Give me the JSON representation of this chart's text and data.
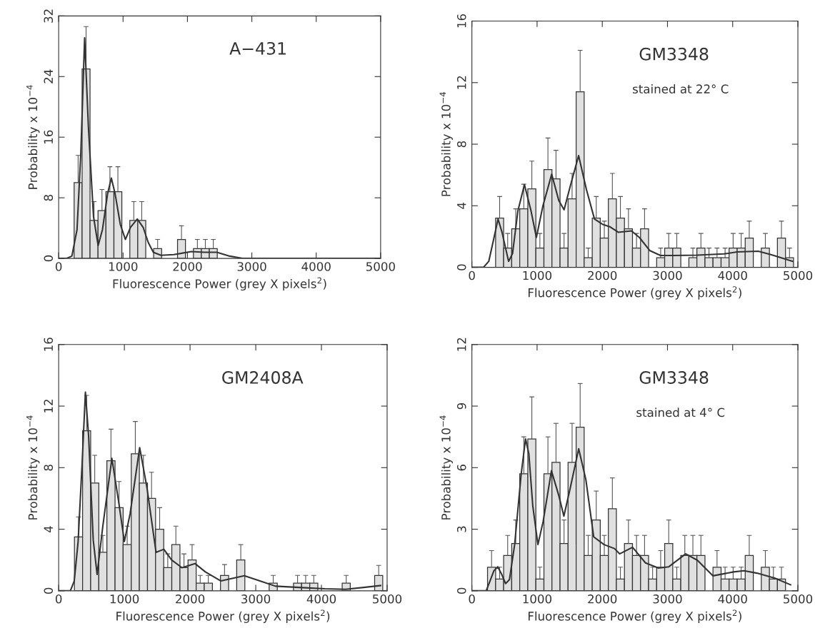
{
  "chart_data": [
    {
      "type": "histogram",
      "title": "A−431",
      "xlabel": "Fluorescence Power (grey X pixels$^{2}$)",
      "ylabel": "Probability x 10$^{−4}$",
      "color": "#e0e0e0",
      "bins": [
        240,
        364,
        487,
        611,
        734,
        858,
        981,
        1105,
        1228,
        1352,
        1475,
        1599,
        1722,
        1846,
        1969,
        2093,
        2216,
        2340,
        2463,
        2587,
        2710,
        2834,
        2957,
        3081,
        3204,
        3328,
        3451,
        3575,
        3698,
        3822,
        3945,
        4069,
        4192,
        4316,
        4439,
        4563,
        4686,
        4810,
        4933
      ],
      "values": [
        10.0,
        25.0,
        5.0,
        6.3,
        8.8,
        8.8,
        0,
        5.0,
        5.0,
        0,
        1.3,
        0,
        0,
        2.5,
        0,
        1.3,
        1.3,
        1.3,
        0,
        0,
        0,
        0,
        0,
        0,
        0,
        0,
        0,
        0,
        0,
        0,
        0,
        0,
        0,
        0,
        0,
        0,
        0,
        0
      ],
      "errors": [
        [
          10.0,
          13.6
        ],
        [
          25.0,
          30.6
        ],
        [
          5.0,
          7.5
        ],
        [
          6.3,
          9.1
        ],
        [
          8.8,
          12.1
        ],
        [
          8.8,
          12.1
        ],
        null,
        [
          5.0,
          7.5
        ],
        [
          5.0,
          7.5
        ],
        null,
        [
          1.3,
          2.5
        ],
        null,
        null,
        [
          2.5,
          4.3
        ],
        null,
        [
          1.3,
          2.5
        ],
        [
          1.3,
          2.5
        ],
        [
          1.3,
          2.5
        ],
        null,
        null,
        null,
        null,
        null,
        null,
        null,
        null,
        null,
        null,
        null,
        null,
        null,
        null,
        null,
        null,
        null,
        null,
        null,
        null
      ],
      "series": [
        {
          "type": "line",
          "color": "#333333",
          "x": [
            0,
            126,
            205,
            285,
            344,
            403,
            462,
            541,
            613,
            680,
            759,
            818,
            877,
            957,
            1036,
            1115,
            1221,
            1312,
            1391,
            1470,
            1589,
            1787,
            2063,
            2261,
            2458,
            2656,
            2854,
            3051,
            5000
          ],
          "values": [
            0,
            0,
            0.3,
            3.8,
            13.9,
            29.1,
            17.3,
            5.5,
            1.7,
            3.8,
            8.5,
            10.6,
            8.5,
            4.5,
            2.5,
            4.1,
            5.2,
            4.1,
            2.1,
            0.8,
            0.4,
            0.5,
            0.9,
            0.8,
            0.8,
            0.3,
            0,
            0,
            0
          ]
        }
      ],
      "xlim": [
        0,
        5000
      ],
      "ylim": [
        0,
        32
      ],
      "xticks": [
        0,
        1000,
        2000,
        3000,
        4000,
        5000
      ],
      "yticks": [
        0,
        8,
        16,
        24,
        32
      ]
    },
    {
      "type": "histogram",
      "title": "GM3348",
      "annotations": [
        "stained at 22° C"
      ],
      "xlabel": "Fluorescence Power (grey X pixels$^{2}$)",
      "ylabel": "Probability x 10$^{−4}$",
      "color": "#e0e0e0",
      "bins": [
        240,
        364,
        487,
        611,
        734,
        858,
        981,
        1105,
        1228,
        1352,
        1475,
        1599,
        1722,
        1846,
        1969,
        2093,
        2216,
        2340,
        2463,
        2587,
        2710,
        2834,
        2957,
        3081,
        3204,
        3328,
        3451,
        3575,
        3698,
        3822,
        3945,
        4069,
        4192,
        4316,
        4439,
        4563,
        4686,
        4810,
        4933
      ],
      "values": [
        0,
        3.2,
        1.25,
        2.5,
        3.8,
        5.1,
        1.25,
        6.35,
        5.75,
        1.25,
        4.45,
        11.4,
        0.62,
        3.2,
        1.9,
        4.45,
        3.2,
        2.5,
        1.25,
        2.5,
        0,
        0.62,
        1.25,
        1.25,
        0,
        0.62,
        1.25,
        0.62,
        0.62,
        0.62,
        1.25,
        1.25,
        1.9,
        0,
        1.25,
        0,
        1.9,
        0.62
      ],
      "errors": [
        null,
        [
          3.2,
          4.6
        ],
        [
          1.25,
          2.2
        ],
        [
          2.5,
          3.8
        ],
        [
          3.8,
          5.4
        ],
        [
          5.1,
          6.9
        ],
        [
          1.25,
          2.2
        ],
        [
          6.35,
          8.4
        ],
        [
          5.75,
          7.6
        ],
        [
          1.25,
          2.2
        ],
        [
          4.45,
          6.1
        ],
        [
          11.4,
          14.1
        ],
        [
          0.62,
          1.25
        ],
        [
          3.2,
          4.6
        ],
        [
          1.9,
          3.0
        ],
        [
          4.45,
          6.1
        ],
        [
          3.2,
          4.6
        ],
        [
          2.5,
          3.8
        ],
        [
          1.25,
          2.2
        ],
        [
          2.5,
          3.8
        ],
        null,
        [
          0.62,
          1.25
        ],
        [
          1.25,
          2.2
        ],
        [
          1.25,
          2.2
        ],
        null,
        [
          0.62,
          1.25
        ],
        [
          1.25,
          2.2
        ],
        [
          0.62,
          1.25
        ],
        [
          0.62,
          1.25
        ],
        [
          0.62,
          1.25
        ],
        [
          1.25,
          2.2
        ],
        [
          1.25,
          2.2
        ],
        [
          1.9,
          3.0
        ],
        null,
        [
          1.25,
          2.2
        ],
        null,
        [
          1.9,
          3.0
        ],
        [
          0.62,
          1.25
        ]
      ],
      "series": [
        {
          "type": "line",
          "color": "#333333",
          "x": [
            0,
            178,
            259,
            340,
            401,
            462,
            563,
            624,
            705,
            806,
            908,
            989,
            1090,
            1224,
            1333,
            1414,
            1515,
            1637,
            1758,
            1880,
            2001,
            2123,
            2245,
            2447,
            2569,
            2731,
            2893,
            3096,
            3460,
            3866,
            4068,
            4392,
            4595,
            4919
          ],
          "values": [
            0,
            0,
            0.39,
            1.94,
            3.14,
            2.28,
            0.39,
            0.9,
            3.65,
            5.37,
            3.65,
            1.94,
            4.0,
            6.05,
            4.34,
            3.74,
            5.37,
            7.26,
            5.03,
            3.14,
            2.8,
            2.62,
            2.28,
            2.37,
            1.94,
            1.08,
            0.77,
            0.77,
            0.79,
            0.87,
            1.0,
            1.05,
            0.82,
            0.39
          ]
        }
      ],
      "xlim": [
        0,
        5000
      ],
      "ylim": [
        0,
        16
      ],
      "xticks": [
        0,
        1000,
        2000,
        3000,
        4000,
        5000
      ],
      "yticks": [
        0,
        4,
        8,
        12,
        16
      ]
    },
    {
      "type": "histogram",
      "title": "GM2408A",
      "xlabel": "Fluorescence Power (grey X pixels$^{2}$)",
      "ylabel": "Probability x 10$^{−4}$",
      "color": "#e0e0e0",
      "bins": [
        240,
        364,
        487,
        611,
        734,
        858,
        981,
        1105,
        1228,
        1352,
        1475,
        1599,
        1722,
        1846,
        1969,
        2093,
        2216,
        2340,
        2463,
        2587,
        2710,
        2834,
        2957,
        3081,
        3204,
        3328,
        3451,
        3575,
        3698,
        3822,
        3945,
        4069,
        4192,
        4316,
        4439,
        4563,
        4686,
        4810,
        4933
      ],
      "values": [
        3.5,
        10.4,
        7.0,
        2.5,
        8.45,
        5.4,
        3.0,
        8.9,
        7.0,
        6.0,
        4.0,
        1.5,
        3.0,
        1.5,
        2.0,
        0.5,
        0.5,
        0,
        1.0,
        0,
        2.0,
        0,
        0,
        0,
        0.5,
        0,
        0,
        0.5,
        0.5,
        0.5,
        0,
        0,
        0,
        0.5,
        0,
        0,
        0,
        1.0
      ],
      "errors": [
        [
          3.5,
          4.8
        ],
        [
          10.4,
          12.7
        ],
        [
          7.0,
          8.8
        ],
        [
          2.5,
          3.6
        ],
        [
          8.45,
          10.5
        ],
        [
          5.4,
          7.1
        ],
        [
          3.0,
          4.2
        ],
        [
          8.9,
          11.0
        ],
        [
          7.0,
          8.8
        ],
        [
          6.0,
          7.7
        ],
        [
          4.0,
          5.4
        ],
        [
          1.5,
          2.4
        ],
        [
          3.0,
          4.2
        ],
        [
          1.5,
          2.4
        ],
        [
          2.0,
          3.0
        ],
        [
          0.5,
          1.0
        ],
        [
          0.5,
          1.0
        ],
        null,
        [
          1.0,
          1.7
        ],
        null,
        [
          2.0,
          3.0
        ],
        null,
        null,
        null,
        [
          0.5,
          1.0
        ],
        null,
        null,
        [
          0.5,
          1.0
        ],
        [
          0.5,
          1.0
        ],
        [
          0.5,
          1.0
        ],
        null,
        null,
        null,
        [
          0.5,
          1.0
        ],
        null,
        null,
        null,
        [
          1.0,
          1.65
        ]
      ],
      "series": [
        {
          "type": "line",
          "color": "#333333",
          "x": [
            0,
            178,
            237,
            296,
            356,
            407,
            455,
            526,
            585,
            672,
            810,
            909,
            1000,
            1087,
            1233,
            1344,
            1482,
            1601,
            1719,
            1877,
            2075,
            2233,
            2470,
            2826,
            3063,
            3300,
            3656,
            4051,
            4368,
            4644,
            4901
          ],
          "values": [
            0,
            0,
            0.64,
            3.2,
            8.2,
            12.9,
            10.1,
            3.3,
            1.06,
            4.2,
            8.6,
            5.9,
            3.2,
            5.0,
            9.3,
            6.7,
            2.5,
            2.7,
            2.0,
            1.5,
            1.77,
            1.23,
            0.64,
            0.98,
            0.64,
            0.3,
            0.22,
            0.13,
            0.1,
            0.22,
            0.34
          ]
        }
      ],
      "xlim": [
        0,
        5000
      ],
      "ylim": [
        0,
        16
      ],
      "xticks": [
        0,
        1000,
        2000,
        3000,
        4000,
        5000
      ],
      "yticks": [
        0,
        4,
        8,
        12,
        16
      ]
    },
    {
      "type": "histogram",
      "title": "GM3348",
      "annotations": [
        "stained at 4° C"
      ],
      "xlabel": "Fluorescence Power (grey X pixels$^{2}$)",
      "ylabel": "Probability x 10$^{−4}$",
      "color": "#e0e0e0",
      "bins": [
        240,
        364,
        487,
        611,
        734,
        858,
        981,
        1105,
        1228,
        1352,
        1475,
        1599,
        1722,
        1846,
        1969,
        2093,
        2216,
        2340,
        2463,
        2587,
        2710,
        2834,
        2957,
        3081,
        3204,
        3328,
        3451,
        3575,
        3698,
        3822,
        3945,
        4069,
        4192,
        4316,
        4439,
        4563,
        4686,
        4810,
        4933
      ],
      "values": [
        1.15,
        0.57,
        1.72,
        2.3,
        5.7,
        7.4,
        0.57,
        5.7,
        6.26,
        2.3,
        6.26,
        7.97,
        1.72,
        3.45,
        1.72,
        4.0,
        0.57,
        2.3,
        1.72,
        1.72,
        0.57,
        1.15,
        2.3,
        0.57,
        1.72,
        1.72,
        1.72,
        0,
        1.15,
        0.57,
        0.57,
        0.57,
        1.72,
        0,
        1.15,
        0.57,
        0.57,
        0
      ],
      "errors": [
        [
          1.15,
          1.96
        ],
        [
          0.57,
          1.15
        ],
        [
          1.72,
          2.7
        ],
        [
          2.3,
          3.45
        ],
        [
          5.7,
          7.5
        ],
        [
          7.4,
          9.45
        ],
        [
          0.57,
          1.15
        ],
        [
          5.7,
          7.5
        ],
        [
          6.26,
          8.16
        ],
        [
          2.3,
          3.45
        ],
        [
          6.26,
          8.16
        ],
        [
          7.97,
          10.1
        ],
        [
          1.72,
          2.7
        ],
        [
          3.45,
          4.86
        ],
        [
          1.72,
          2.7
        ],
        [
          4.0,
          5.5
        ],
        [
          0.57,
          1.15
        ],
        [
          2.3,
          3.45
        ],
        [
          1.72,
          2.7
        ],
        [
          1.72,
          2.7
        ],
        [
          0.57,
          1.15
        ],
        [
          1.15,
          1.96
        ],
        [
          2.3,
          3.45
        ],
        [
          0.57,
          1.15
        ],
        [
          1.72,
          2.7
        ],
        [
          1.72,
          2.7
        ],
        [
          1.72,
          2.7
        ],
        null,
        [
          1.15,
          1.96
        ],
        [
          0.57,
          1.15
        ],
        [
          0.57,
          1.15
        ],
        [
          0.57,
          1.15
        ],
        [
          1.72,
          2.7
        ],
        null,
        [
          1.15,
          1.96
        ],
        [
          0.57,
          1.15
        ],
        [
          0.57,
          1.15
        ],
        null
      ],
      "series": [
        {
          "type": "line",
          "color": "#333333",
          "x": [
            0,
            219,
            278,
            338,
            397,
            457,
            517,
            576,
            656,
            755,
            823,
            874,
            934,
            1013,
            1093,
            1220,
            1332,
            1411,
            1510,
            1638,
            1749,
            1868,
            2027,
            2186,
            2266,
            2464,
            2663,
            2862,
            3021,
            3279,
            3458,
            3696,
            4014,
            4173,
            4372,
            4650,
            4889
          ],
          "values": [
            0,
            0,
            0.48,
            0.98,
            1.17,
            0.8,
            0.35,
            0.54,
            2.25,
            5.66,
            7.4,
            6.67,
            4.14,
            2.25,
            3.38,
            5.85,
            4.65,
            3.64,
            5.03,
            6.92,
            5.4,
            2.63,
            2.25,
            2.06,
            1.8,
            2.12,
            1.36,
            1.11,
            1.17,
            1.8,
            1.49,
            0.73,
            0.92,
            0.98,
            0.86,
            0.61,
            0.29
          ]
        }
      ],
      "xlim": [
        0,
        5000
      ],
      "ylim": [
        0,
        12
      ],
      "xticks": [
        0,
        1000,
        2000,
        3000,
        4000,
        5000
      ],
      "yticks": [
        0,
        3,
        6,
        9,
        12
      ]
    }
  ]
}
